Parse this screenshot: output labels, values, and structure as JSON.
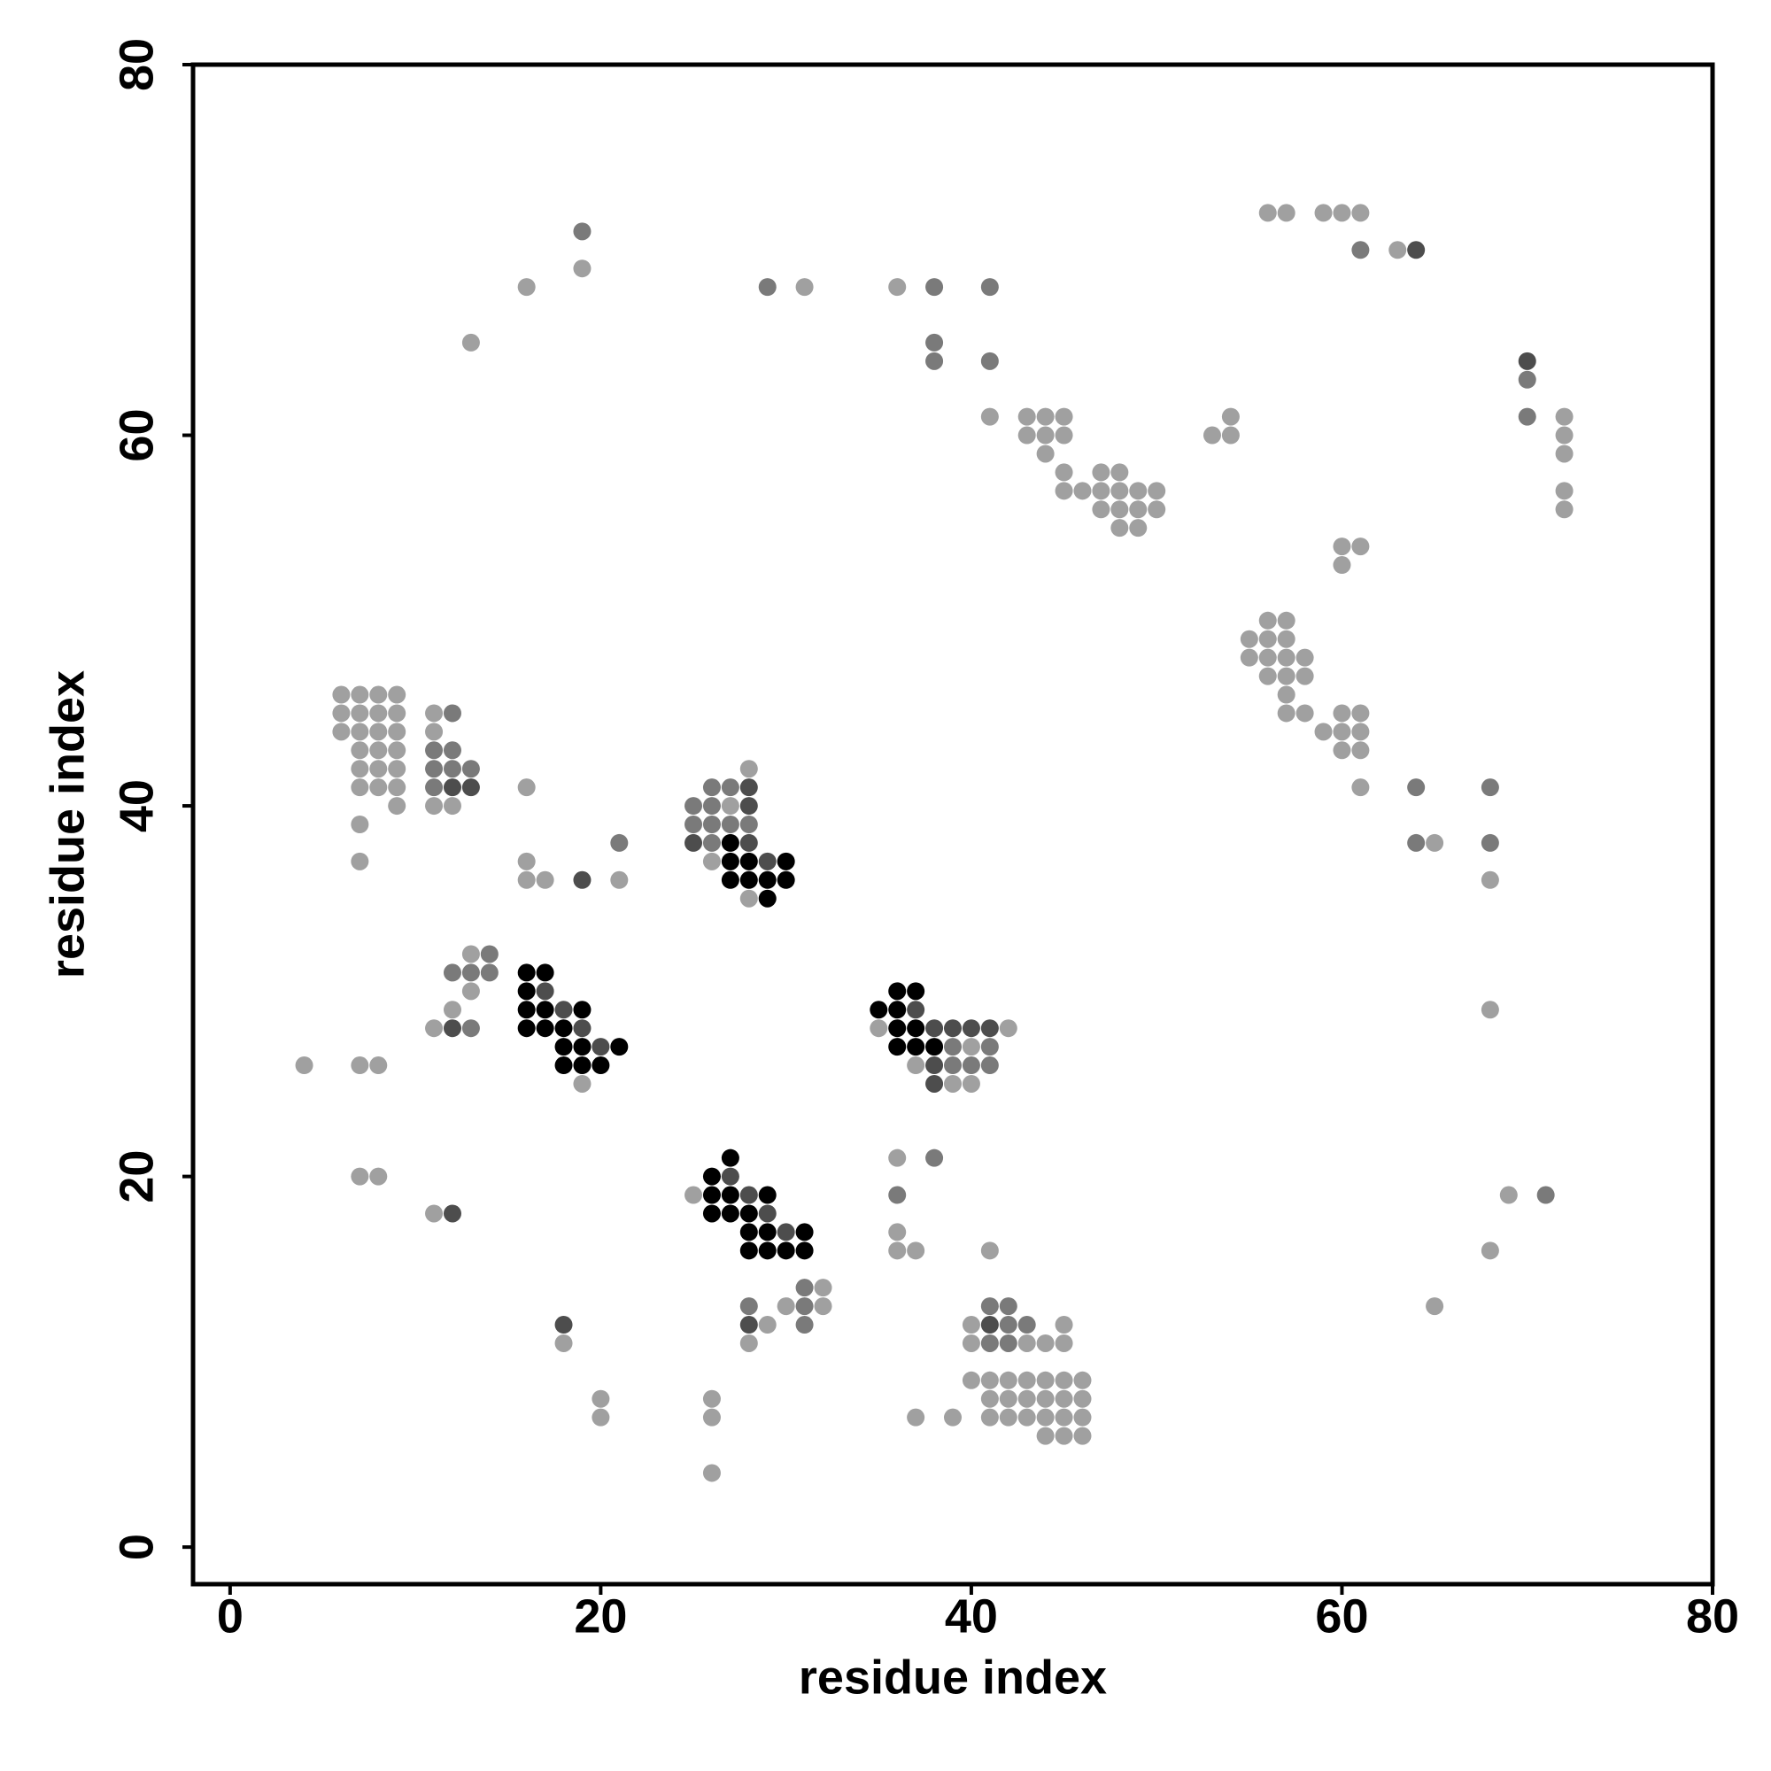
{
  "chart_data": {
    "type": "scatter",
    "xlabel": "residue index",
    "ylabel": "residue index",
    "xlim": [
      -2,
      80
    ],
    "ylim": [
      -2,
      80
    ],
    "xticks": [
      0,
      20,
      40,
      60,
      80
    ],
    "yticks": [
      0,
      20,
      40,
      60,
      80
    ],
    "x": [
      56,
      57,
      59,
      60,
      61,
      19,
      61,
      63,
      64,
      19,
      16,
      29,
      31,
      36,
      38,
      41,
      13,
      38,
      38,
      41,
      70,
      70,
      41,
      43,
      44,
      45,
      54,
      70,
      72,
      43,
      44,
      45,
      53,
      54,
      72,
      44,
      72,
      45,
      47,
      48,
      45,
      46,
      47,
      48,
      49,
      50,
      72,
      47,
      48,
      49,
      50,
      72,
      48,
      49,
      60,
      61,
      60,
      56,
      57,
      55,
      56,
      57,
      55,
      56,
      57,
      58,
      56,
      57,
      58,
      6,
      7,
      8,
      9,
      57,
      6,
      7,
      8,
      9,
      11,
      12,
      57,
      58,
      60,
      61,
      6,
      7,
      8,
      9,
      11,
      59,
      60,
      61,
      7,
      8,
      9,
      11,
      12,
      60,
      61,
      7,
      8,
      9,
      11,
      12,
      13,
      28,
      7,
      8,
      9,
      11,
      12,
      13,
      16,
      26,
      27,
      28,
      61,
      64,
      68,
      9,
      11,
      12,
      25,
      26,
      27,
      28,
      7,
      25,
      26,
      27,
      28,
      21,
      25,
      26,
      27,
      28,
      64,
      65,
      68,
      7,
      16,
      26,
      27,
      28,
      29,
      30,
      16,
      17,
      19,
      21,
      27,
      28,
      29,
      30,
      68,
      28,
      29,
      13,
      14,
      12,
      13,
      14,
      16,
      17,
      13,
      16,
      17,
      36,
      37,
      12,
      16,
      17,
      18,
      19,
      35,
      36,
      37,
      68,
      11,
      12,
      13,
      16,
      17,
      18,
      19,
      35,
      36,
      37,
      38,
      39,
      40,
      41,
      42,
      18,
      19,
      20,
      21,
      36,
      37,
      38,
      39,
      40,
      41,
      4,
      7,
      8,
      18,
      19,
      20,
      37,
      38,
      39,
      40,
      41,
      19,
      38,
      39,
      40,
      27,
      36,
      38,
      7,
      8,
      26,
      27,
      25,
      26,
      27,
      28,
      29,
      36,
      69,
      71,
      11,
      12,
      26,
      27,
      28,
      29,
      28,
      29,
      30,
      31,
      36,
      28,
      29,
      30,
      31,
      36,
      37,
      41,
      68,
      31,
      32,
      28,
      30,
      31,
      32,
      41,
      42,
      65,
      18,
      28,
      29,
      31,
      40,
      41,
      42,
      43,
      45,
      18,
      28,
      40,
      41,
      42,
      43,
      44,
      45,
      40,
      41,
      42,
      43,
      44,
      45,
      46,
      20,
      26,
      41,
      42,
      43,
      44,
      45,
      46,
      20,
      26,
      37,
      39,
      41,
      42,
      43,
      44,
      45,
      46,
      44,
      45,
      46,
      26
    ],
    "y": [
      72,
      72,
      72,
      72,
      72,
      71,
      70,
      70,
      70,
      69,
      68,
      68,
      68,
      68,
      68,
      68,
      65,
      65,
      64,
      64,
      64,
      63,
      61,
      61,
      61,
      61,
      61,
      61,
      61,
      60,
      60,
      60,
      60,
      60,
      60,
      59,
      59,
      58,
      58,
      58,
      57,
      57,
      57,
      57,
      57,
      57,
      57,
      56,
      56,
      56,
      56,
      56,
      55,
      55,
      54,
      54,
      53,
      50,
      50,
      49,
      49,
      49,
      48,
      48,
      48,
      48,
      47,
      47,
      47,
      46,
      46,
      46,
      46,
      46,
      45,
      45,
      45,
      45,
      45,
      45,
      45,
      45,
      45,
      45,
      44,
      44,
      44,
      44,
      44,
      44,
      44,
      44,
      43,
      43,
      43,
      43,
      43,
      43,
      43,
      42,
      42,
      42,
      42,
      42,
      42,
      42,
      41,
      41,
      41,
      41,
      41,
      41,
      41,
      41,
      41,
      41,
      41,
      41,
      41,
      40,
      40,
      40,
      40,
      40,
      40,
      40,
      39,
      39,
      39,
      39,
      39,
      38,
      38,
      38,
      38,
      38,
      38,
      38,
      38,
      37,
      37,
      37,
      37,
      37,
      37,
      37,
      36,
      36,
      36,
      36,
      36,
      36,
      36,
      36,
      36,
      35,
      35,
      32,
      32,
      31,
      31,
      31,
      31,
      31,
      30,
      30,
      30,
      30,
      30,
      29,
      29,
      29,
      29,
      29,
      29,
      29,
      29,
      29,
      28,
      28,
      28,
      28,
      28,
      28,
      28,
      28,
      28,
      28,
      28,
      28,
      28,
      28,
      28,
      27,
      27,
      27,
      27,
      27,
      27,
      27,
      27,
      27,
      27,
      26,
      26,
      26,
      26,
      26,
      26,
      26,
      26,
      26,
      26,
      26,
      25,
      25,
      25,
      25,
      21,
      21,
      21,
      20,
      20,
      20,
      20,
      19,
      19,
      19,
      19,
      19,
      19,
      19,
      19,
      18,
      18,
      18,
      18,
      18,
      18,
      17,
      17,
      17,
      17,
      17,
      16,
      16,
      16,
      16,
      16,
      16,
      16,
      16,
      14,
      14,
      13,
      13,
      13,
      13,
      13,
      13,
      13,
      12,
      12,
      12,
      12,
      12,
      12,
      12,
      12,
      12,
      11,
      11,
      11,
      11,
      11,
      11,
      11,
      11,
      9,
      9,
      9,
      9,
      9,
      9,
      9,
      8,
      8,
      8,
      8,
      8,
      8,
      8,
      8,
      7,
      7,
      7,
      7,
      7,
      7,
      7,
      7,
      7,
      7,
      6,
      6,
      6,
      4
    ],
    "colors": [
      "#a0a0a0",
      "#a0a0a0",
      "#a0a0a0",
      "#a0a0a0",
      "#a0a0a0",
      "#7a7a7a",
      "#7a7a7a",
      "#a0a0a0",
      "#4d4d4d",
      "#a0a0a0",
      "#a0a0a0",
      "#7a7a7a",
      "#a0a0a0",
      "#a0a0a0",
      "#7a7a7a",
      "#7a7a7a",
      "#a0a0a0",
      "#7a7a7a",
      "#7a7a7a",
      "#7a7a7a",
      "#4d4d4d",
      "#7a7a7a",
      "#a0a0a0",
      "#a0a0a0",
      "#a0a0a0",
      "#a0a0a0",
      "#a0a0a0",
      "#7a7a7a",
      "#a0a0a0",
      "#a0a0a0",
      "#a0a0a0",
      "#a0a0a0",
      "#a0a0a0",
      "#a0a0a0",
      "#a0a0a0",
      "#a0a0a0",
      "#a0a0a0",
      "#a0a0a0",
      "#a0a0a0",
      "#a0a0a0",
      "#a0a0a0",
      "#a0a0a0",
      "#a0a0a0",
      "#a0a0a0",
      "#a0a0a0",
      "#a0a0a0",
      "#a0a0a0",
      "#a0a0a0",
      "#a0a0a0",
      "#a0a0a0",
      "#a0a0a0",
      "#a0a0a0",
      "#a0a0a0",
      "#a0a0a0",
      "#a0a0a0",
      "#a0a0a0",
      "#a0a0a0",
      "#a0a0a0",
      "#a0a0a0",
      "#a0a0a0",
      "#a0a0a0",
      "#a0a0a0",
      "#a0a0a0",
      "#a0a0a0",
      "#a0a0a0",
      "#a0a0a0",
      "#a0a0a0",
      "#a0a0a0",
      "#a0a0a0",
      "#a0a0a0",
      "#a0a0a0",
      "#a0a0a0",
      "#a0a0a0",
      "#a0a0a0",
      "#a0a0a0",
      "#a0a0a0",
      "#a0a0a0",
      "#a0a0a0",
      "#a0a0a0",
      "#7a7a7a",
      "#a0a0a0",
      "#a0a0a0",
      "#a0a0a0",
      "#a0a0a0",
      "#a0a0a0",
      "#a0a0a0",
      "#a0a0a0",
      "#a0a0a0",
      "#a0a0a0",
      "#a0a0a0",
      "#a0a0a0",
      "#a0a0a0",
      "#a0a0a0",
      "#a0a0a0",
      "#a0a0a0",
      "#7a7a7a",
      "#7a7a7a",
      "#a0a0a0",
      "#a0a0a0",
      "#a0a0a0",
      "#a0a0a0",
      "#a0a0a0",
      "#7a7a7a",
      "#7a7a7a",
      "#7a7a7a",
      "#a0a0a0",
      "#a0a0a0",
      "#a0a0a0",
      "#a0a0a0",
      "#7a7a7a",
      "#4d4d4d",
      "#4d4d4d",
      "#a0a0a0",
      "#7a7a7a",
      "#7a7a7a",
      "#4d4d4d",
      "#a0a0a0",
      "#7a7a7a",
      "#7a7a7a",
      "#a0a0a0",
      "#a0a0a0",
      "#a0a0a0",
      "#7a7a7a",
      "#7a7a7a",
      "#a0a0a0",
      "#4d4d4d",
      "#a0a0a0",
      "#7a7a7a",
      "#7a7a7a",
      "#7a7a7a",
      "#7a7a7a",
      "#7a7a7a",
      "#4d4d4d",
      "#7a7a7a",
      "#000000",
      "#4d4d4d",
      "#7a7a7a",
      "#a0a0a0",
      "#7a7a7a",
      "#a0a0a0",
      "#a0a0a0",
      "#a0a0a0",
      "#000000",
      "#000000",
      "#4d4d4d",
      "#000000",
      "#a0a0a0",
      "#a0a0a0",
      "#4d4d4d",
      "#a0a0a0",
      "#000000",
      "#000000",
      "#000000",
      "#000000",
      "#a0a0a0",
      "#a0a0a0",
      "#000000",
      "#a0a0a0",
      "#7a7a7a",
      "#7a7a7a",
      "#7a7a7a",
      "#7a7a7a",
      "#000000",
      "#000000",
      "#a0a0a0",
      "#000000",
      "#4d4d4d",
      "#000000",
      "#000000",
      "#a0a0a0",
      "#000000",
      "#000000",
      "#4d4d4d",
      "#000000",
      "#000000",
      "#000000",
      "#4d4d4d",
      "#a0a0a0",
      "#a0a0a0",
      "#4d4d4d",
      "#7a7a7a",
      "#000000",
      "#000000",
      "#000000",
      "#4d4d4d",
      "#a0a0a0",
      "#000000",
      "#000000",
      "#4d4d4d",
      "#4d4d4d",
      "#4d4d4d",
      "#4d4d4d",
      "#a0a0a0",
      "#000000",
      "#000000",
      "#4d4d4d",
      "#000000",
      "#000000",
      "#000000",
      "#000000",
      "#7a7a7a",
      "#a0a0a0",
      "#7a7a7a",
      "#a0a0a0",
      "#a0a0a0",
      "#a0a0a0",
      "#000000",
      "#000000",
      "#000000",
      "#a0a0a0",
      "#4d4d4d",
      "#7a7a7a",
      "#7a7a7a",
      "#7a7a7a",
      "#a0a0a0",
      "#4d4d4d",
      "#a0a0a0",
      "#a0a0a0",
      "#000000",
      "#a0a0a0",
      "#7a7a7a",
      "#a0a0a0",
      "#a0a0a0",
      "#000000",
      "#4d4d4d",
      "#a0a0a0",
      "#000000",
      "#000000",
      "#4d4d4d",
      "#000000",
      "#7a7a7a",
      "#a0a0a0",
      "#7a7a7a",
      "#a0a0a0",
      "#4d4d4d",
      "#000000",
      "#000000",
      "#000000",
      "#4d4d4d",
      "#000000",
      "#000000",
      "#4d4d4d",
      "#000000",
      "#a0a0a0",
      "#000000",
      "#000000",
      "#000000",
      "#000000",
      "#a0a0a0",
      "#a0a0a0",
      "#a0a0a0",
      "#a0a0a0",
      "#7a7a7a",
      "#a0a0a0",
      "#7a7a7a",
      "#a0a0a0",
      "#7a7a7a",
      "#a0a0a0",
      "#7a7a7a",
      "#7a7a7a",
      "#a0a0a0",
      "#4d4d4d",
      "#4d4d4d",
      "#a0a0a0",
      "#7a7a7a",
      "#a0a0a0",
      "#4d4d4d",
      "#7a7a7a",
      "#7a7a7a",
      "#a0a0a0",
      "#a0a0a0",
      "#a0a0a0",
      "#a0a0a0",
      "#7a7a7a",
      "#7a7a7a",
      "#a0a0a0",
      "#a0a0a0",
      "#a0a0a0",
      "#a0a0a0",
      "#a0a0a0",
      "#a0a0a0",
      "#a0a0a0",
      "#a0a0a0",
      "#a0a0a0",
      "#a0a0a0",
      "#a0a0a0",
      "#a0a0a0",
      "#a0a0a0",
      "#a0a0a0",
      "#a0a0a0",
      "#a0a0a0",
      "#a0a0a0",
      "#a0a0a0",
      "#a0a0a0",
      "#a0a0a0",
      "#a0a0a0",
      "#a0a0a0",
      "#a0a0a0",
      "#a0a0a0",
      "#a0a0a0",
      "#a0a0a0",
      "#a0a0a0",
      "#a0a0a0",
      "#a0a0a0",
      "#a0a0a0",
      "#a0a0a0",
      "#a0a0a0"
    ]
  }
}
